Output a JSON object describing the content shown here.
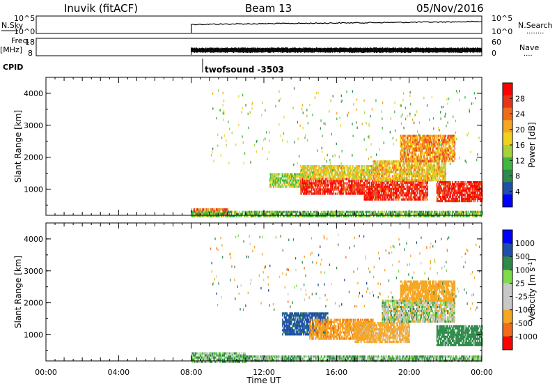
{
  "header": {
    "station": "Inuvik (fitACF)",
    "beam": "Beam 13",
    "date": "05/Nov/2016"
  },
  "summary_panels": {
    "noise": {
      "left_label": "N.Sky",
      "left_ticks": [
        "10^5",
        "10^0"
      ],
      "right_ticks": [
        "10^5",
        "10^0"
      ],
      "right_label": "N.Search",
      "right_label_dots": "........"
    },
    "freq": {
      "left_label_1": "Freq.",
      "left_label_2": "[MHz]",
      "left_ticks": [
        "18",
        "8"
      ],
      "right_ticks": [
        "60",
        "0"
      ],
      "right_label": "Nave",
      "right_label_dots": "...."
    },
    "cpid": {
      "label": "CPID",
      "program": "twofsound -3503"
    }
  },
  "colors": {
    "power_scale": [
      "#0000ff",
      "#1f4fa8",
      "#2f8a4a",
      "#3fb83f",
      "#a8d23c",
      "#f0d21e",
      "#f5a623",
      "#f06c1a",
      "#e8331b",
      "#ff0000"
    ],
    "velocity_scale": [
      "#ff0000",
      "#f06c1a",
      "#f5a623",
      "#c8c8c8",
      "#c8c8c8",
      "#7ddc4a",
      "#2f8a4a",
      "#1f4fa8",
      "#0000ff"
    ],
    "ground_scatter": "#c8c8c8"
  },
  "chart_data": [
    {
      "type": "heatmap",
      "name": "power",
      "xlabel": "",
      "ylabel": "Slant Range [km]",
      "xlim": [
        0,
        24
      ],
      "ylim": [
        180,
        4500
      ],
      "yticks": [
        1000,
        2000,
        3000,
        4000
      ],
      "colorbar": {
        "label": "Power [dB]",
        "ticks": [
          4,
          8,
          12,
          16,
          20,
          24,
          28
        ],
        "range": [
          0,
          30
        ]
      },
      "data_start_hour": 8.0,
      "regions": [
        {
          "t0": 8.0,
          "t1": 10.0,
          "r0": 180,
          "r1": 400,
          "level": 0.8
        },
        {
          "t0": 12.3,
          "t1": 14.5,
          "r0": 1100,
          "r1": 1500,
          "level": 0.45
        },
        {
          "t0": 14.0,
          "t1": 17.5,
          "r0": 850,
          "r1": 1350,
          "level": 0.9
        },
        {
          "t0": 14.0,
          "t1": 18.0,
          "r0": 1350,
          "r1": 1750,
          "level": 0.55
        },
        {
          "t0": 17.5,
          "t1": 21.0,
          "r0": 700,
          "r1": 1300,
          "level": 0.93
        },
        {
          "t0": 18.0,
          "t1": 22.0,
          "r0": 1300,
          "r1": 1900,
          "level": 0.6
        },
        {
          "t0": 19.5,
          "t1": 22.5,
          "r0": 1900,
          "r1": 2700,
          "level": 0.7
        },
        {
          "t0": 21.5,
          "t1": 24.0,
          "r0": 650,
          "r1": 1250,
          "level": 0.95
        },
        {
          "t0": 8.0,
          "t1": 24.0,
          "r0": 180,
          "r1": 320,
          "level": 0.35
        }
      ]
    },
    {
      "type": "heatmap",
      "name": "velocity",
      "xlabel": "Time UT",
      "ylabel": "Slant Range [km]",
      "xlim": [
        0,
        24
      ],
      "ylim": [
        180,
        4500
      ],
      "xticks": [
        "00:00",
        "04:00",
        "08:00",
        "12:00",
        "16:00",
        "20:00",
        "00:00"
      ],
      "yticks": [
        1000,
        2000,
        3000,
        4000
      ],
      "colorbar": {
        "label": "Velocity [m s^-1]",
        "ticks": [
          1000,
          500,
          100,
          25,
          -25,
          -100,
          -500,
          -1000
        ]
      },
      "regions": [
        {
          "t0": 8.0,
          "t1": 11.0,
          "r0": 180,
          "r1": 450,
          "velocity": 80
        },
        {
          "t0": 13.0,
          "t1": 15.5,
          "r0": 1000,
          "r1": 1700,
          "velocity": 600
        },
        {
          "t0": 14.5,
          "t1": 18.0,
          "r0": 900,
          "r1": 1500,
          "velocity": -400
        },
        {
          "t0": 17.0,
          "t1": 20.0,
          "r0": 800,
          "r1": 1400,
          "velocity": -200
        },
        {
          "t0": 18.5,
          "t1": 22.5,
          "r0": 1400,
          "r1": 2100,
          "velocity": 0
        },
        {
          "t0": 19.5,
          "t1": 22.5,
          "r0": 2100,
          "r1": 2700,
          "velocity": -300
        },
        {
          "t0": 21.5,
          "t1": 24.0,
          "r0": 700,
          "r1": 1300,
          "velocity": 300
        },
        {
          "t0": 10.0,
          "t1": 24.0,
          "r0": 180,
          "r1": 350,
          "velocity": 100
        }
      ]
    }
  ]
}
